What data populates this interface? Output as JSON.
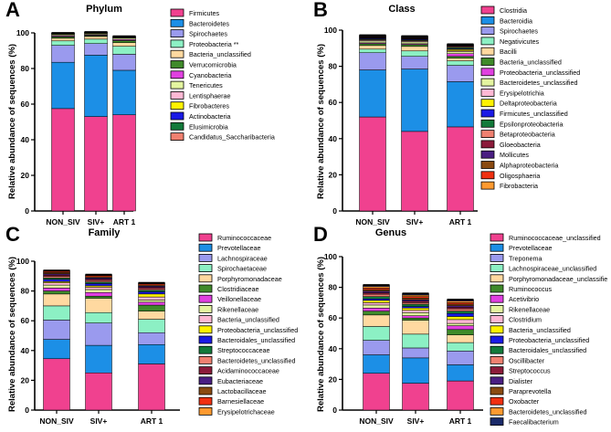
{
  "chart_data": [
    {
      "type": "bar",
      "panel": "A",
      "title": "Phylum",
      "ylabel": "Relative abundance of sequences (%)",
      "ylim": [
        0,
        100
      ],
      "yticks": [
        0,
        20,
        40,
        60,
        80,
        100
      ],
      "categories": [
        "NON_SIV",
        "SIV+",
        "ART 1"
      ],
      "series": [
        {
          "name": "Firmicutes",
          "color": "#f0418f",
          "values": [
            57.5,
            53,
            54
          ]
        },
        {
          "name": "Bacteroidetes",
          "color": "#1c8fe6",
          "values": [
            26,
            34.5,
            25
          ]
        },
        {
          "name": "Spirochaetes",
          "color": "#9a9aee",
          "values": [
            9.5,
            6.5,
            9
          ]
        },
        {
          "name": "Proteobacteria **",
          "color": "#8cf0c4",
          "values": [
            2.5,
            2.5,
            4.5
          ]
        },
        {
          "name": "Bacteria_unclassified",
          "color": "#ffd9a0",
          "values": [
            1.5,
            1.5,
            2
          ]
        },
        {
          "name": "Verrucomicrobia",
          "color": "#3f8a2a",
          "values": [
            0.8,
            0.5,
            1.2
          ]
        },
        {
          "name": "Cyanobacteria",
          "color": "#e040e0",
          "values": [
            0.5,
            0.4,
            0.6
          ]
        },
        {
          "name": "Tenericutes",
          "color": "#e4f5a0",
          "values": [
            0.6,
            0.5,
            0.7
          ]
        },
        {
          "name": "Lentisphaerae",
          "color": "#ffb8d4",
          "values": [
            0.3,
            0.3,
            0.3
          ]
        },
        {
          "name": "Fibrobacteres",
          "color": "#fff200",
          "values": [
            0.3,
            0.3,
            0.3
          ]
        },
        {
          "name": "Actinobacteria",
          "color": "#1a1ae6",
          "values": [
            0.2,
            0.2,
            0.2
          ]
        },
        {
          "name": "Elusimicrobia",
          "color": "#127a3a",
          "values": [
            0.2,
            0.2,
            0.2
          ]
        },
        {
          "name": "Candidatus_Saccharibacteria",
          "color": "#f08070",
          "values": [
            0.1,
            0.1,
            0.1
          ]
        }
      ]
    },
    {
      "type": "bar",
      "panel": "B",
      "title": "Class",
      "ylabel": "Relative abundance of sequences (%)",
      "ylim": [
        0,
        100
      ],
      "yticks": [
        0,
        20,
        40,
        60,
        80,
        100
      ],
      "categories": [
        "NON_SIV",
        "SIV+",
        "ART 1"
      ],
      "series": [
        {
          "name": "Clostridia",
          "color": "#f0418f",
          "values": [
            52,
            44,
            46.5
          ]
        },
        {
          "name": "Bacteroidia",
          "color": "#1c8fe6",
          "values": [
            26,
            34.5,
            25
          ]
        },
        {
          "name": "Spirochaetes",
          "color": "#9a9aee",
          "values": [
            9.5,
            7,
            9
          ]
        },
        {
          "name": "Negativicutes",
          "color": "#8cf0c4",
          "values": [
            2,
            3,
            2.5
          ]
        },
        {
          "name": "Bacilli",
          "color": "#ffd9a0",
          "values": [
            2,
            2.5,
            1.5
          ]
        },
        {
          "name": "Bacteria_unclassified",
          "color": "#3f8a2a",
          "values": [
            1,
            1,
            1
          ]
        },
        {
          "name": "Proteobacteria_unclassified",
          "color": "#e040e0",
          "values": [
            0.5,
            0.5,
            1.5
          ]
        },
        {
          "name": "Bacteroidetes_unclassified",
          "color": "#e4f5a0",
          "values": [
            1,
            1,
            1
          ]
        },
        {
          "name": "Erysipelotrichia",
          "color": "#ffb8d4",
          "values": [
            0.5,
            0.5,
            0.5
          ]
        },
        {
          "name": "Deltaproteobacteria",
          "color": "#fff200",
          "values": [
            0.4,
            0.4,
            0.8
          ]
        },
        {
          "name": "Firmicutes_unclassified",
          "color": "#1a1ae6",
          "values": [
            0.4,
            0.4,
            0.4
          ]
        },
        {
          "name": "Epsilonproteobacteria",
          "color": "#127a3a",
          "values": [
            0.3,
            0.3,
            0.7
          ]
        },
        {
          "name": "Betaproteobacteria",
          "color": "#f08070",
          "values": [
            0.3,
            0.3,
            0.5
          ]
        },
        {
          "name": "Gloeobacteria",
          "color": "#8b1a3a",
          "values": [
            0.3,
            0.3,
            0.3
          ]
        },
        {
          "name": "Mollicutes",
          "color": "#4a1e82",
          "values": [
            0.3,
            0.3,
            0.3
          ]
        },
        {
          "name": "Alphaproteobacteria",
          "color": "#8a4a10",
          "values": [
            0.3,
            0.3,
            0.3
          ]
        },
        {
          "name": "Oligosphaeria",
          "color": "#f03010",
          "values": [
            0.2,
            0.2,
            0.2
          ]
        },
        {
          "name": "Fibrobacteria",
          "color": "#ff9a30",
          "values": [
            0.2,
            0.2,
            0.2
          ]
        }
      ]
    },
    {
      "type": "bar",
      "panel": "C",
      "title": "Family",
      "ylabel": "Relative abundance of sequences (%)",
      "ylim": [
        0,
        100
      ],
      "yticks": [
        0,
        20,
        40,
        60,
        80,
        100
      ],
      "categories": [
        "NON_SIV",
        "SIV+",
        "ART 1"
      ],
      "series": [
        {
          "name": "Ruminococcaceae",
          "color": "#f0418f",
          "values": [
            34.5,
            25,
            31
          ]
        },
        {
          "name": "Prevotellaceae",
          "color": "#1c8fe6",
          "values": [
            13,
            18.5,
            13
          ]
        },
        {
          "name": "Lachnospiraceae",
          "color": "#9a9aee",
          "values": [
            13,
            15,
            8
          ]
        },
        {
          "name": "Spirochaetaceae",
          "color": "#8cf0c4",
          "values": [
            9.5,
            7,
            9
          ]
        },
        {
          "name": "Porphyromonadaceae",
          "color": "#ffd9a0",
          "values": [
            8,
            9.5,
            5.5
          ]
        },
        {
          "name": "Clostridiaceae",
          "color": "#3f8a2a",
          "values": [
            2,
            1.5,
            4
          ]
        },
        {
          "name": "Veillonellaceae",
          "color": "#e040e0",
          "values": [
            2,
            2.5,
            2
          ]
        },
        {
          "name": "Rikenellaceae",
          "color": "#e4f5a0",
          "values": [
            2,
            2,
            1.5
          ]
        },
        {
          "name": "Bacteria_unclassified",
          "color": "#ffb8d4",
          "values": [
            1.5,
            1.5,
            2
          ]
        },
        {
          "name": "Proteobacteria_unclassified",
          "color": "#fff200",
          "values": [
            0.8,
            1,
            2
          ]
        },
        {
          "name": "Bacteroidales_unclassified",
          "color": "#1a1ae6",
          "values": [
            1.5,
            1.5,
            1.5
          ]
        },
        {
          "name": "Streptococcaceae",
          "color": "#127a3a",
          "values": [
            1,
            1,
            1
          ]
        },
        {
          "name": "Bacteroidetes_unclassified",
          "color": "#f08070",
          "values": [
            1,
            1,
            1
          ]
        },
        {
          "name": "Acidaminococcaceae",
          "color": "#8b1a3a",
          "values": [
            1,
            1,
            1
          ]
        },
        {
          "name": "Eubacteriaceae",
          "color": "#4a1e82",
          "values": [
            0.8,
            0.8,
            0.8
          ]
        },
        {
          "name": "Lactobacillaceae",
          "color": "#8a4a10",
          "values": [
            0.8,
            0.8,
            0.8
          ]
        },
        {
          "name": "Barnesiellaceae",
          "color": "#f03010",
          "values": [
            0.8,
            0.8,
            0.8
          ]
        },
        {
          "name": "Erysipelotrichaceae",
          "color": "#ff9a30",
          "values": [
            0.6,
            0.6,
            0.6
          ]
        }
      ]
    },
    {
      "type": "bar",
      "panel": "D",
      "title": "Genus",
      "ylabel": "Relative abundance of sequences (%)",
      "ylim": [
        0,
        100
      ],
      "yticks": [
        0,
        20,
        40,
        60,
        80,
        100
      ],
      "categories": [
        "NON_SIV",
        "SIV+",
        "ART 1"
      ],
      "series": [
        {
          "name": "Ruminococcaceae_unclassified",
          "color": "#f0418f",
          "values": [
            24,
            17.5,
            19
          ]
        },
        {
          "name": "Prevotellaceae",
          "color": "#1c8fe6",
          "values": [
            12,
            16.5,
            10.5
          ]
        },
        {
          "name": "Treponema",
          "color": "#9a9aee",
          "values": [
            9.5,
            6.5,
            9
          ]
        },
        {
          "name": "Lachnospiraceae_unclassified",
          "color": "#8cf0c4",
          "values": [
            9,
            9,
            5.5
          ]
        },
        {
          "name": "Porphyromonadaceae_unclassifie",
          "color": "#ffd9a0",
          "values": [
            7.5,
            9,
            5
          ]
        },
        {
          "name": "Ruminococcus",
          "color": "#3f8a2a",
          "values": [
            2.5,
            1.5,
            3.5
          ]
        },
        {
          "name": "Acetivibrio",
          "color": "#e040e0",
          "values": [
            2,
            1.5,
            2.5
          ]
        },
        {
          "name": "Rikenellaceae",
          "color": "#e4f5a0",
          "values": [
            2,
            2,
            1.5
          ]
        },
        {
          "name": "Clostridium",
          "color": "#ffb8d4",
          "values": [
            1.5,
            1.5,
            2.5
          ]
        },
        {
          "name": "Bacteria_unclassified",
          "color": "#fff200",
          "values": [
            1.5,
            1.5,
            2
          ]
        },
        {
          "name": "Proteobacteria_unclassified",
          "color": "#1a1ae6",
          "values": [
            1,
            1,
            2
          ]
        },
        {
          "name": "Bacteroidales_unclassified",
          "color": "#127a3a",
          "values": [
            1.5,
            1.5,
            1.5
          ]
        },
        {
          "name": "Oscillibacter",
          "color": "#f08070",
          "values": [
            1.5,
            1,
            1.5
          ]
        },
        {
          "name": "Streptococcus",
          "color": "#8b1a3a",
          "values": [
            1,
            1,
            1
          ]
        },
        {
          "name": "Dialister",
          "color": "#4a1e82",
          "values": [
            1,
            1,
            1
          ]
        },
        {
          "name": "Paraprevotella",
          "color": "#8a4a10",
          "values": [
            1,
            1,
            1
          ]
        },
        {
          "name": "Oxobacter",
          "color": "#f03010",
          "values": [
            1,
            1,
            1
          ]
        },
        {
          "name": "Bacteroidetes_unclassified",
          "color": "#ff9a30",
          "values": [
            1,
            1,
            1
          ]
        },
        {
          "name": "Faecalibacterium",
          "color": "#1a2a6a",
          "values": [
            1,
            1,
            1
          ]
        }
      ]
    }
  ]
}
